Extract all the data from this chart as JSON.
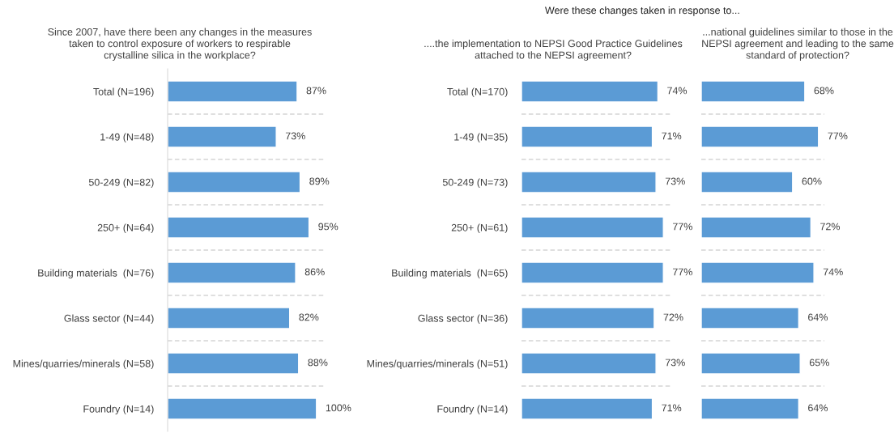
{
  "chart_data": [
    {
      "type": "bar",
      "orientation": "horizontal",
      "title": "Since 2007, have there been any changes in the measures\ntaken to control exposure of workers to respirable\ncrystalline silica in the workplace?",
      "categories": [
        "Total (N=196)",
        "1-49 (N=48)",
        "50-249 (N=82)",
        "250+ (N=64)",
        "Building materials  (N=76)",
        "Glass sector (N=44)",
        "Mines/quarries/minerals (N=58)",
        "Foundry (N=14)"
      ],
      "series": [
        {
          "color": "#5b9bd5",
          "values": [
            87,
            73,
            89,
            95,
            86,
            82,
            88,
            100
          ],
          "value_labels": [
            "87%",
            "73%",
            "89%",
            "95%",
            "86%",
            "82%",
            "88%",
            "100%"
          ]
        }
      ],
      "grid": "y"
    },
    {
      "type": "bar",
      "orientation": "horizontal",
      "title": "Were these changes taken in response to...",
      "subtitle": "....the implementation to NEPSI Good Practice Guidelines\nattached to the NEPSI agreement?",
      "categories": [
        "Total (N=170)",
        "1-49 (N=35)",
        "50-249 (N=73)",
        "250+ (N=61)",
        "Building materials  (N=65)",
        "Glass sector (N=36)",
        "Mines/quarries/minerals (N=51)",
        "Foundry (N=14)"
      ],
      "series": [
        {
          "color": "#5b9bd5",
          "values": [
            74,
            71,
            73,
            77,
            77,
            72,
            73,
            71
          ],
          "value_labels": [
            "74%",
            "71%",
            "73%",
            "77%",
            "77%",
            "72%",
            "73%",
            "71%"
          ]
        }
      ],
      "grid": "y"
    },
    {
      "type": "bar",
      "orientation": "horizontal",
      "title": "...national guidelines similar to those in the\nNEPSI agreement and leading to the same\nstandard of protection?",
      "categories": [
        null,
        null,
        null,
        null,
        null,
        null,
        null,
        null
      ],
      "series": [
        {
          "color": "#5b9bd5",
          "values": [
            68,
            77,
            60,
            72,
            74,
            64,
            65,
            64
          ],
          "value_labels": [
            "68%",
            "77%",
            "60%",
            "72%",
            "74%",
            "64%",
            "65%",
            "64%"
          ]
        }
      ],
      "grid": "y"
    }
  ]
}
